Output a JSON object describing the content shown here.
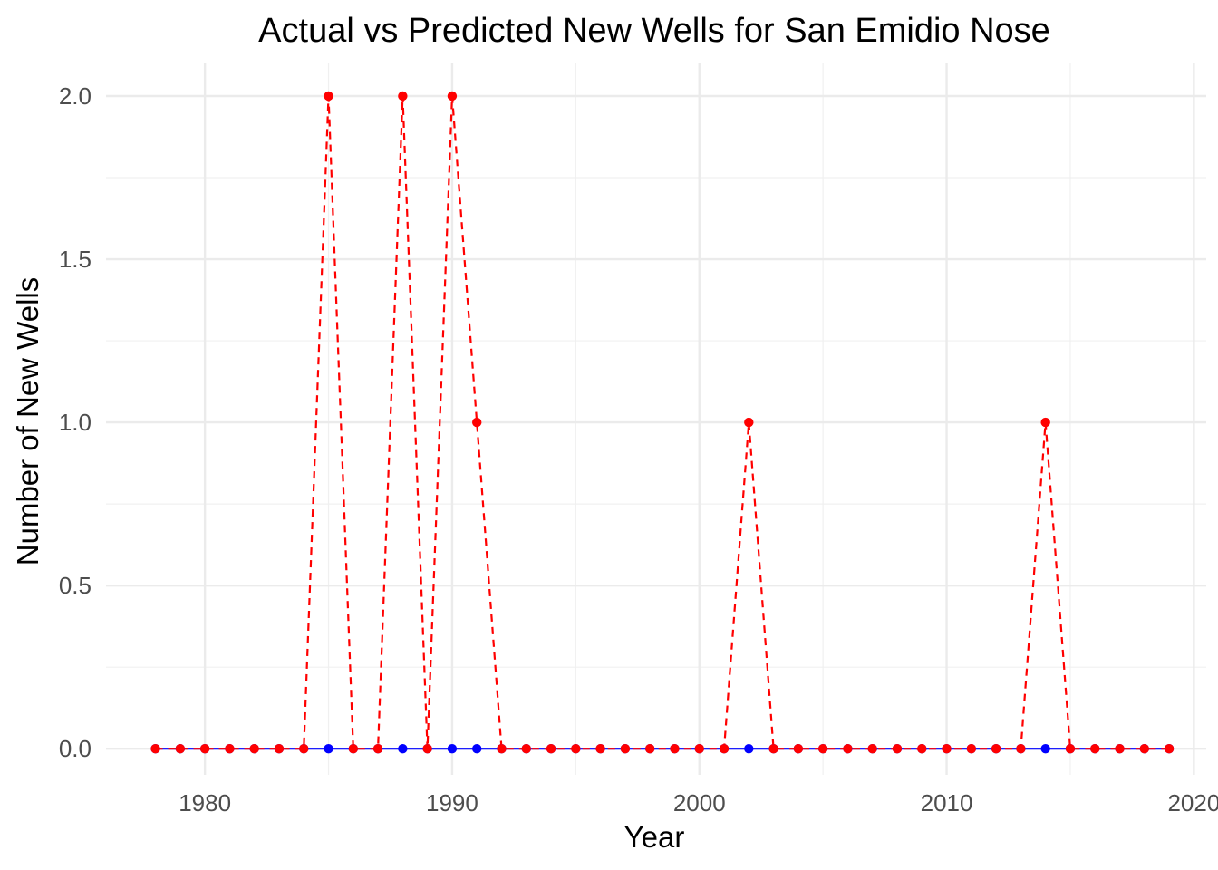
{
  "chart_data": {
    "type": "line",
    "title": "Actual vs Predicted New Wells for San Emidio Nose",
    "xlabel": "Year",
    "ylabel": "Number of New Wells",
    "xlim": [
      1976,
      2020.5
    ],
    "ylim": [
      -0.08,
      2.1
    ],
    "x_ticks": [
      1980,
      1990,
      2000,
      2010,
      2020
    ],
    "x_tick_labels": [
      "1980",
      "1990",
      "2000",
      "2010",
      "2020"
    ],
    "y_ticks": [
      0,
      0.5,
      1,
      1.5,
      2
    ],
    "y_tick_labels": [
      "0.0",
      "0.5",
      "1.0",
      "1.5",
      "2.0"
    ],
    "grid": true,
    "legend": "none",
    "x": [
      1978,
      1979,
      1980,
      1981,
      1982,
      1983,
      1984,
      1985,
      1986,
      1987,
      1988,
      1989,
      1990,
      1991,
      1992,
      1993,
      1994,
      1995,
      1996,
      1997,
      1998,
      1999,
      2000,
      2001,
      2002,
      2003,
      2004,
      2005,
      2006,
      2007,
      2008,
      2009,
      2010,
      2011,
      2012,
      2013,
      2014,
      2015,
      2016,
      2017,
      2018,
      2019
    ],
    "series": [
      {
        "color": "#0000ff",
        "line": "solid",
        "values": [
          0,
          0,
          0,
          0,
          0,
          0,
          0,
          0,
          0,
          0,
          0,
          0,
          0,
          0,
          0,
          0,
          0,
          0,
          0,
          0,
          0,
          0,
          0,
          0,
          0,
          0,
          0,
          0,
          0,
          0,
          0,
          0,
          0,
          0,
          0,
          0,
          0,
          0,
          0,
          0,
          0,
          0
        ]
      },
      {
        "color": "#ff0000",
        "line": "dashed",
        "values": [
          0,
          0,
          0,
          0,
          0,
          0,
          0,
          2,
          0,
          0,
          2,
          0,
          2,
          1,
          0,
          0,
          0,
          0,
          0,
          0,
          0,
          0,
          0,
          0,
          1,
          0,
          0,
          0,
          0,
          0,
          0,
          0,
          0,
          0,
          0,
          0,
          1,
          0,
          0,
          0,
          0,
          0
        ]
      }
    ]
  }
}
